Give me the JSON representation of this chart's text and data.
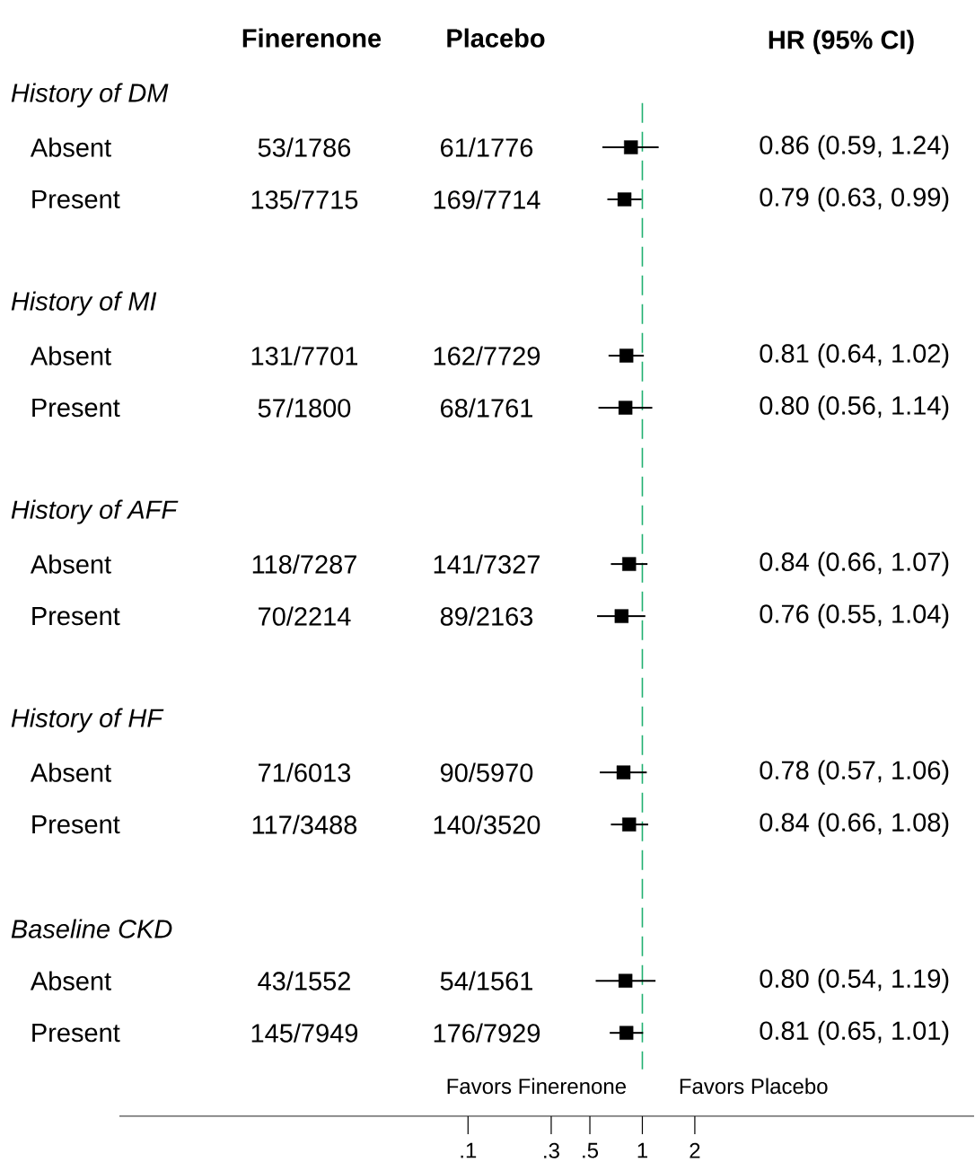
{
  "chart_data": {
    "type": "scatter",
    "orientation": "horizontal",
    "marker": "square",
    "color": "#000000",
    "categories": [
      "History of DM",
      "Absent",
      "Present",
      null,
      "History of MI",
      "Absent",
      "Present",
      null,
      "History of AFF",
      "Absent",
      "Present",
      null,
      "History of HF",
      "Absent",
      "Present",
      null,
      "Baseline CKD",
      "Absent",
      "Present"
    ],
    "values": [
      null,
      0.86,
      0.79,
      null,
      null,
      0.81,
      0.8,
      null,
      null,
      0.84,
      0.76,
      null,
      null,
      0.78,
      0.84,
      null,
      null,
      0.8,
      0.81
    ],
    "errors": [
      null,
      [
        0.59,
        1.24
      ],
      [
        0.63,
        0.99
      ],
      null,
      null,
      [
        0.64,
        1.02
      ],
      [
        0.56,
        1.14
      ],
      null,
      null,
      [
        0.66,
        1.07
      ],
      [
        0.55,
        1.04
      ],
      null,
      null,
      [
        0.57,
        1.06
      ],
      [
        0.66,
        1.08
      ],
      null,
      null,
      [
        0.54,
        1.19
      ],
      [
        0.65,
        1.01
      ]
    ],
    "log": "x",
    "xlim": [
      0.001,
      80
    ],
    "xticks": [
      {
        "value": 0.1,
        "label": ".1"
      },
      {
        "value": 0.3,
        "label": ".3"
      },
      {
        "value": 0.5,
        "label": ".5"
      },
      1,
      2
    ],
    "ref_lines": [
      {
        "axis": "x",
        "value": 1,
        "color": "#20b070",
        "line_style": "dashed"
      }
    ],
    "annotations": [
      "Finerenone",
      "Placebo",
      "HR (95% CI)",
      "Favors Finerenone",
      "Favors Placebo",
      "53/1786",
      "61/1776",
      "0.86 (0.59, 1.24)",
      "135/7715",
      "169/7714",
      "0.79 (0.63, 0.99)",
      "131/7701",
      "162/7729",
      "0.81 (0.64, 1.02)",
      "57/1800",
      "68/1761",
      "0.80 (0.56, 1.14)",
      "118/7287",
      "141/7327",
      "0.84 (0.66, 1.07)",
      "70/2214",
      "89/2163",
      "0.76 (0.55, 1.04)",
      "71/6013",
      "90/5970",
      "0.78 (0.57, 1.06)",
      "117/3488",
      "140/3520",
      "0.84 (0.66, 1.08)",
      "43/1552",
      "54/1561",
      "0.80 (0.54, 1.19)",
      "145/7949",
      "176/7929",
      "0.81 (0.65, 1.01)"
    ]
  }
}
